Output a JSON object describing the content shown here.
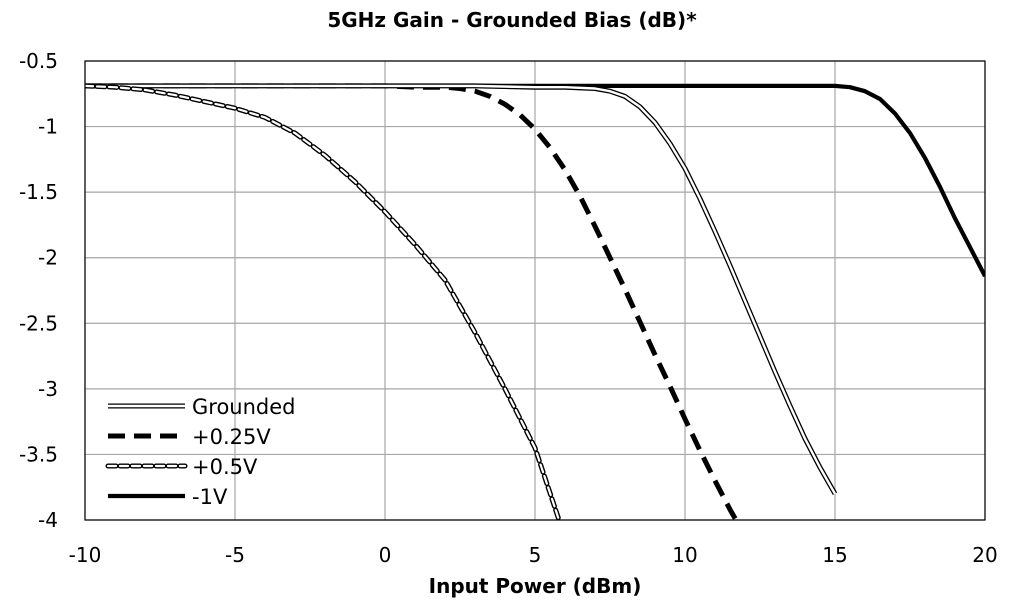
{
  "chart_data": {
    "type": "line",
    "title": "5GHz Gain - Grounded Bias (dB)*",
    "xlabel": "Input Power (dBm)",
    "ylabel": "",
    "xlim": [
      -10,
      20
    ],
    "ylim": [
      -4,
      -0.5
    ],
    "xticks": [
      -10,
      -5,
      0,
      5,
      10,
      15,
      20
    ],
    "xtick_labels": [
      "-10",
      "-5",
      "0",
      "5",
      "10",
      "15",
      "20"
    ],
    "yticks": [
      -0.5,
      -1,
      -1.5,
      -2,
      -2.5,
      -3,
      -3.5,
      -4
    ],
    "ytick_labels": [
      "-0.5",
      "-1",
      "-1.5",
      "-2",
      "-2.5",
      "-3",
      "-3.5",
      "-4"
    ],
    "grid": true,
    "legend_position": "bottom-left",
    "series": [
      {
        "name": "Grounded",
        "style": "double",
        "color": "#000000",
        "x": [
          -10,
          -5,
          0,
          3,
          5,
          6,
          7,
          7.5,
          8,
          8.5,
          9,
          9.5,
          10,
          10.5,
          11,
          11.5,
          12,
          12.5,
          13,
          13.5,
          14,
          14.5,
          15
        ],
        "y": [
          -0.69,
          -0.69,
          -0.69,
          -0.69,
          -0.7,
          -0.7,
          -0.71,
          -0.73,
          -0.77,
          -0.85,
          -0.97,
          -1.13,
          -1.32,
          -1.55,
          -1.8,
          -2.06,
          -2.33,
          -2.6,
          -2.87,
          -3.13,
          -3.38,
          -3.6,
          -3.8
        ]
      },
      {
        "name": "+0.25V",
        "style": "dash-thick",
        "color": "#000000",
        "x": [
          -10,
          -8,
          -5,
          0,
          1,
          2,
          2.5,
          3,
          3.5,
          4,
          4.5,
          5,
          5.5,
          6,
          6.5,
          7,
          7.5,
          8,
          8.5,
          9,
          9.5,
          10,
          10.5,
          11,
          11.5,
          11.7
        ],
        "y": [
          -0.69,
          -0.69,
          -0.69,
          -0.69,
          -0.7,
          -0.7,
          -0.71,
          -0.73,
          -0.77,
          -0.83,
          -0.91,
          -1.02,
          -1.16,
          -1.33,
          -1.53,
          -1.76,
          -2.0,
          -2.24,
          -2.49,
          -2.74,
          -2.98,
          -3.23,
          -3.47,
          -3.7,
          -3.92,
          -4.0
        ]
      },
      {
        "name": "+0.5V",
        "style": "dash-outline",
        "color": "#000000",
        "x": [
          -10,
          -9,
          -8,
          -7,
          -6,
          -5,
          -4,
          -3,
          -2,
          -1,
          0,
          1,
          2,
          3,
          4,
          5,
          5.8
        ],
        "y": [
          -0.69,
          -0.7,
          -0.72,
          -0.76,
          -0.81,
          -0.86,
          -0.93,
          -1.05,
          -1.22,
          -1.42,
          -1.65,
          -1.9,
          -2.17,
          -2.57,
          -3.0,
          -3.45,
          -4.0
        ]
      },
      {
        "name": "-1V",
        "style": "solid-thick",
        "color": "#000000",
        "x": [
          -10,
          -5,
          0,
          5,
          10,
          14,
          15,
          15.5,
          16,
          16.5,
          17,
          17.5,
          18,
          18.5,
          19,
          19.5,
          20
        ],
        "y": [
          -0.69,
          -0.69,
          -0.69,
          -0.69,
          -0.69,
          -0.69,
          -0.69,
          -0.7,
          -0.73,
          -0.79,
          -0.9,
          -1.05,
          -1.24,
          -1.46,
          -1.7,
          -1.92,
          -2.14
        ]
      }
    ]
  }
}
